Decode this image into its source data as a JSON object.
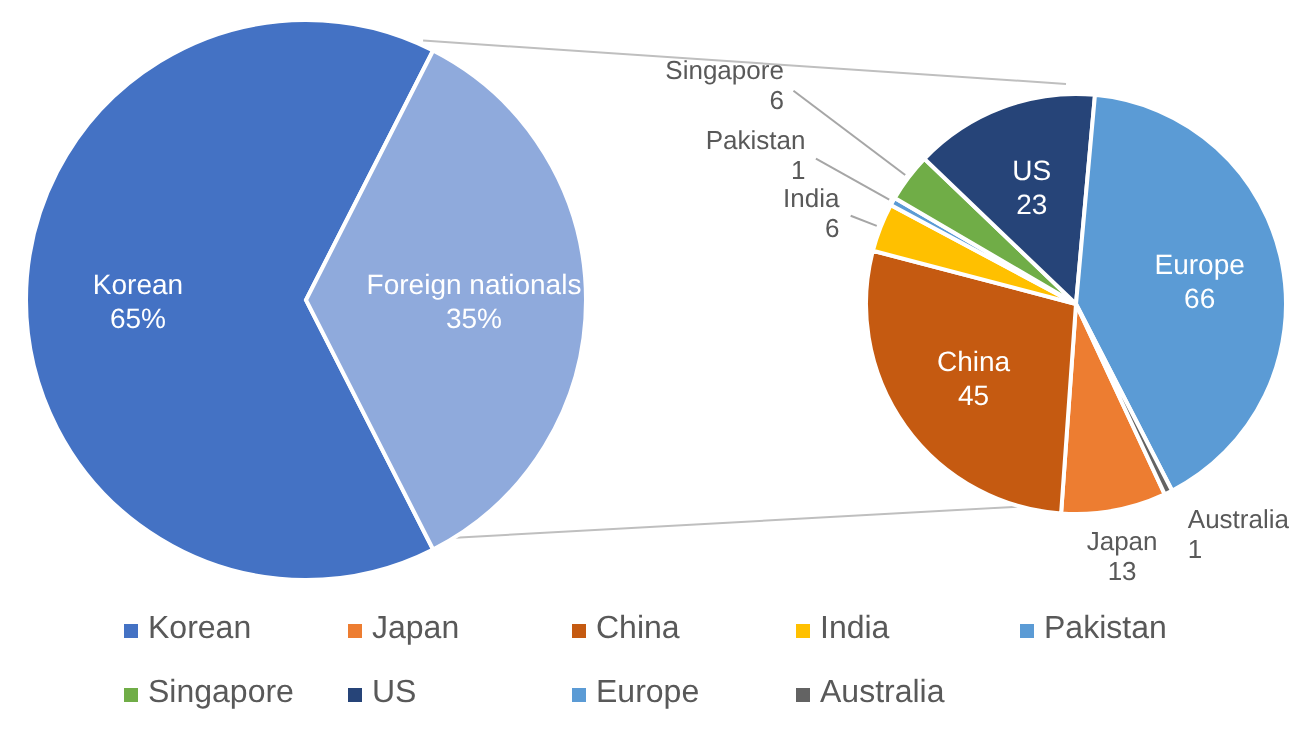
{
  "chart_data": [
    {
      "type": "pie",
      "categories": [
        "Korean",
        "Foreign nationals"
      ],
      "values": [
        65,
        35
      ],
      "colors": [
        "#4472c4",
        "#8faadc"
      ],
      "value_labels": [
        "65%",
        "35%"
      ],
      "legend": "bottom"
    },
    {
      "type": "pie",
      "categories": [
        "Japan",
        "China",
        "India",
        "Pakistan",
        "Singapore",
        "US",
        "Europe",
        "Australia"
      ],
      "values": [
        13,
        45,
        6,
        1,
        6,
        23,
        66,
        1
      ],
      "colors": [
        "#ed7d31",
        "#c55a11",
        "#ffc000",
        "#5b9bd5",
        "#70ad47",
        "#264478",
        "#5b9bd5",
        "#636363"
      ],
      "data_labels": true,
      "legend": "bottom"
    }
  ]
}
